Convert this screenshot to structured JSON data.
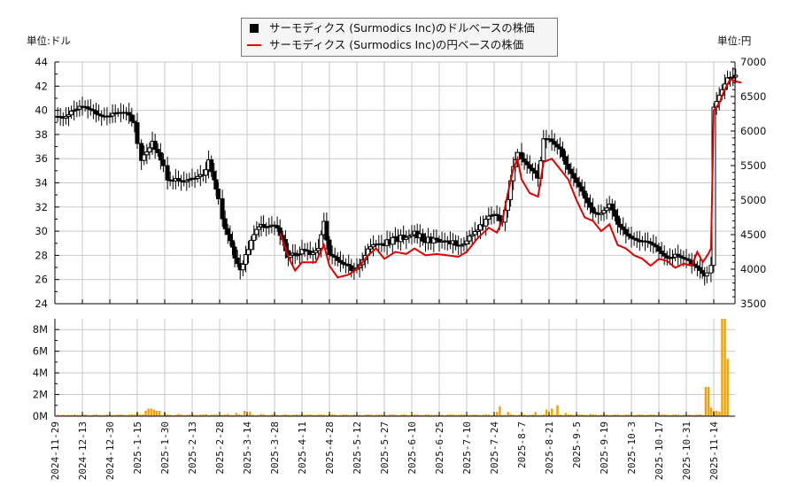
{
  "legend": {
    "usd_label": "サーモディクス (Surmodics Inc)のドルベースの株価",
    "jpy_label": "サーモディクス (Surmodics Inc)の円ベースの株価"
  },
  "units": {
    "left": "単位:ドル",
    "right": "単位:円"
  },
  "colors": {
    "candle": "#000000",
    "jpy_line": "#e00000",
    "volume": "#f5a000",
    "grid": "#c8c8c8"
  },
  "chart_data": [
    {
      "type": "candlestick",
      "title": "",
      "legend": [
        "サーモディクス (Surmodics Inc)のドルベースの株価",
        "サーモディクス (Surmodics Inc)の円ベースの株価"
      ],
      "ylabel_left": "単位:ドル",
      "ylabel_right": "単位:円",
      "ylim_left": [
        24,
        44
      ],
      "yticks_left": [
        24,
        26,
        28,
        30,
        32,
        34,
        36,
        38,
        40,
        42,
        44
      ],
      "ylim_right": [
        3500,
        7000
      ],
      "yticks_right": [
        3500,
        4000,
        4500,
        5000,
        5500,
        6000,
        6500,
        7000
      ],
      "grid": true,
      "x": [
        "2024-11-29",
        "2024-12-13",
        "2024-12-30",
        "2025-1-15",
        "2025-1-30",
        "2025-2-13",
        "2025-2-28",
        "2025-3-14",
        "2025-3-28",
        "2025-4-11",
        "2025-4-28",
        "2025-5-12",
        "2025-5-27",
        "2025-6-10",
        "2025-6-25",
        "2025-7-10",
        "2025-7-24",
        "2025-8-7",
        "2025-8-21",
        "2025-9-5",
        "2025-9-19",
        "2025-10-3",
        "2025-10-17",
        "2025-10-31",
        "2025-11-14"
      ],
      "series": [
        {
          "name": "USD close (approx, sampled)",
          "values": [
            [
              0,
              39.5
            ],
            [
              0.3,
              39.6
            ],
            [
              0.6,
              40.0
            ],
            [
              0.9,
              40.1
            ],
            [
              1.2,
              40.0
            ],
            [
              1.5,
              39.9
            ],
            [
              1.8,
              39.7
            ],
            [
              2.1,
              39.6
            ],
            [
              2.4,
              39.6
            ],
            [
              2.7,
              39.7
            ],
            [
              2.9,
              38.8
            ],
            [
              3.0,
              37.5
            ],
            [
              3.15,
              36.0
            ],
            [
              3.35,
              36.8
            ],
            [
              3.55,
              37.5
            ],
            [
              3.75,
              36.3
            ],
            [
              3.95,
              35.2
            ],
            [
              4.1,
              34.0
            ],
            [
              4.3,
              34.0
            ],
            [
              4.5,
              34.3
            ],
            [
              4.8,
              34.0
            ],
            [
              5.1,
              34.2
            ],
            [
              5.4,
              34.8
            ],
            [
              5.6,
              35.8
            ],
            [
              5.8,
              34.0
            ],
            [
              5.95,
              32.5
            ],
            [
              6.1,
              31.0
            ],
            [
              6.3,
              29.5
            ],
            [
              6.55,
              28.0
            ],
            [
              6.75,
              27.0
            ],
            [
              6.95,
              28.0
            ],
            [
              7.15,
              29.0
            ],
            [
              7.35,
              30.0
            ],
            [
              7.6,
              30.5
            ],
            [
              7.9,
              30.7
            ],
            [
              8.1,
              30.5
            ],
            [
              8.3,
              29.3
            ],
            [
              8.5,
              27.6
            ],
            [
              8.75,
              28.2
            ],
            [
              9.0,
              28.3
            ],
            [
              9.3,
              28.2
            ],
            [
              9.6,
              28.8
            ],
            [
              9.8,
              31.0
            ],
            [
              10.0,
              28.0
            ],
            [
              10.3,
              27.8
            ],
            [
              10.6,
              27.4
            ],
            [
              10.8,
              27.0
            ],
            [
              11.1,
              27.3
            ],
            [
              11.4,
              28.3
            ],
            [
              11.7,
              28.8
            ],
            [
              12.0,
              29.0
            ],
            [
              12.4,
              29.3
            ],
            [
              12.8,
              29.6
            ],
            [
              13.1,
              29.8
            ],
            [
              13.5,
              29.3
            ],
            [
              13.9,
              29.2
            ],
            [
              14.3,
              29.1
            ],
            [
              14.7,
              29.0
            ],
            [
              15.0,
              29.3
            ],
            [
              15.4,
              30.2
            ],
            [
              15.8,
              31.0
            ],
            [
              16.1,
              31.2
            ],
            [
              16.3,
              30.5
            ],
            [
              16.5,
              32.5
            ],
            [
              16.7,
              35.5
            ],
            [
              16.85,
              36.5
            ],
            [
              17.0,
              35.8
            ],
            [
              17.3,
              35.0
            ],
            [
              17.6,
              34.5
            ],
            [
              17.8,
              37.5
            ],
            [
              18.1,
              37.6
            ],
            [
              18.4,
              37.0
            ],
            [
              18.7,
              35.0
            ],
            [
              19.0,
              33.8
            ],
            [
              19.3,
              32.8
            ],
            [
              19.6,
              31.8
            ],
            [
              19.9,
              31.5
            ],
            [
              20.2,
              32.0
            ],
            [
              20.5,
              30.5
            ],
            [
              20.8,
              30.0
            ],
            [
              21.1,
              29.5
            ],
            [
              21.4,
              29.0
            ],
            [
              21.7,
              28.8
            ],
            [
              22.0,
              28.5
            ],
            [
              22.3,
              28.0
            ],
            [
              22.6,
              28.0
            ],
            [
              22.9,
              27.5
            ],
            [
              23.2,
              27.3
            ],
            [
              23.5,
              27.0
            ],
            [
              23.75,
              26.3
            ],
            [
              23.9,
              27.0
            ],
            [
              24.0,
              40.5
            ],
            [
              24.2,
              41.4
            ],
            [
              24.5,
              42.9
            ],
            [
              24.8,
              42.9
            ]
          ]
        },
        {
          "name": "JPY line (approx, sampled)",
          "values": [
            [
              8.2,
              4520
            ],
            [
              8.5,
              4180
            ],
            [
              8.75,
              3980
            ],
            [
              9.0,
              4100
            ],
            [
              9.5,
              4100
            ],
            [
              9.8,
              4350
            ],
            [
              10.0,
              4050
            ],
            [
              10.3,
              3880
            ],
            [
              10.7,
              3920
            ],
            [
              11.0,
              4000
            ],
            [
              11.4,
              4200
            ],
            [
              11.7,
              4300
            ],
            [
              12.0,
              4150
            ],
            [
              12.4,
              4250
            ],
            [
              12.8,
              4220
            ],
            [
              13.1,
              4300
            ],
            [
              13.5,
              4200
            ],
            [
              13.9,
              4220
            ],
            [
              14.3,
              4200
            ],
            [
              14.7,
              4180
            ],
            [
              15.0,
              4250
            ],
            [
              15.4,
              4450
            ],
            [
              15.8,
              4600
            ],
            [
              16.1,
              4530
            ],
            [
              16.3,
              4700
            ],
            [
              16.5,
              5100
            ],
            [
              16.7,
              5450
            ],
            [
              16.85,
              5600
            ],
            [
              17.0,
              5300
            ],
            [
              17.3,
              5100
            ],
            [
              17.6,
              5050
            ],
            [
              17.8,
              5550
            ],
            [
              18.1,
              5600
            ],
            [
              18.4,
              5450
            ],
            [
              18.7,
              5300
            ],
            [
              19.0,
              5000
            ],
            [
              19.3,
              4750
            ],
            [
              19.6,
              4700
            ],
            [
              19.9,
              4550
            ],
            [
              20.2,
              4650
            ],
            [
              20.5,
              4350
            ],
            [
              20.8,
              4300
            ],
            [
              21.1,
              4200
            ],
            [
              21.4,
              4150
            ],
            [
              21.7,
              4050
            ],
            [
              22.0,
              4150
            ],
            [
              22.3,
              4120
            ],
            [
              22.6,
              4020
            ],
            [
              22.9,
              4080
            ],
            [
              23.2,
              4050
            ],
            [
              23.4,
              4250
            ],
            [
              23.6,
              4100
            ],
            [
              23.8,
              4220
            ],
            [
              23.9,
              4300
            ],
            [
              24.0,
              6300
            ],
            [
              24.2,
              6400
            ],
            [
              24.4,
              6600
            ],
            [
              24.6,
              6750
            ],
            [
              24.8,
              6720
            ],
            [
              25.0,
              6700
            ]
          ]
        },
        {
          "name": "Volume (approx, M)",
          "values": [
            [
              0.2,
              0.1
            ],
            [
              0.6,
              0.1
            ],
            [
              1.2,
              0.1
            ],
            [
              1.6,
              0.1
            ],
            [
              2.1,
              0.1
            ],
            [
              2.6,
              0.1
            ],
            [
              3.0,
              0.3
            ],
            [
              3.3,
              0.5
            ],
            [
              3.45,
              0.7
            ],
            [
              3.6,
              0.6
            ],
            [
              3.75,
              0.5
            ],
            [
              4.0,
              0.3
            ],
            [
              4.5,
              0.2
            ],
            [
              5.0,
              0.2
            ],
            [
              5.5,
              0.2
            ],
            [
              6.3,
              0.2
            ],
            [
              6.6,
              0.3
            ],
            [
              6.9,
              0.5
            ],
            [
              7.1,
              0.4
            ],
            [
              7.5,
              0.2
            ],
            [
              8.0,
              0.2
            ],
            [
              9.0,
              0.2
            ],
            [
              10.0,
              0.2
            ],
            [
              11.0,
              0.1
            ],
            [
              12.0,
              0.1
            ],
            [
              13.0,
              0.1
            ],
            [
              14.0,
              0.1
            ],
            [
              15.0,
              0.1
            ],
            [
              16.1,
              0.4
            ],
            [
              16.2,
              0.9
            ],
            [
              16.5,
              0.4
            ],
            [
              17.0,
              0.3
            ],
            [
              17.5,
              0.4
            ],
            [
              17.9,
              0.6
            ],
            [
              18.1,
              0.7
            ],
            [
              18.3,
              1.0
            ],
            [
              18.6,
              0.3
            ],
            [
              19.0,
              0.2
            ],
            [
              19.5,
              0.2
            ],
            [
              20.0,
              0.2
            ],
            [
              21.0,
              0.1
            ],
            [
              22.0,
              0.1
            ],
            [
              23.0,
              0.1
            ],
            [
              23.6,
              0.1
            ],
            [
              23.75,
              2.7
            ],
            [
              23.9,
              0.8
            ],
            [
              24.05,
              0.5
            ],
            [
              24.2,
              0.4
            ],
            [
              24.35,
              9.0
            ],
            [
              24.5,
              5.3
            ]
          ]
        }
      ]
    },
    {
      "type": "bar",
      "title": "",
      "ylabel": "Volume",
      "ylim": [
        0,
        9000000
      ],
      "yticks": [
        "0M",
        "2M",
        "4M",
        "6M",
        "8M"
      ],
      "x": [
        "2024-11-29",
        "2024-12-13",
        "2024-12-30",
        "2025-1-15",
        "2025-1-30",
        "2025-2-13",
        "2025-2-28",
        "2025-3-14",
        "2025-3-28",
        "2025-4-11",
        "2025-4-28",
        "2025-5-12",
        "2025-5-27",
        "2025-6-10",
        "2025-6-25",
        "2025-7-10",
        "2025-7-24",
        "2025-8-7",
        "2025-8-21",
        "2025-9-5",
        "2025-9-19",
        "2025-10-3",
        "2025-10-17",
        "2025-10-31",
        "2025-11-14"
      ]
    }
  ],
  "axes": {
    "left_ticks": [
      "24",
      "26",
      "28",
      "30",
      "32",
      "34",
      "36",
      "38",
      "40",
      "42",
      "44"
    ],
    "right_ticks": [
      "3500",
      "4000",
      "4500",
      "5000",
      "5500",
      "6000",
      "6500",
      "7000"
    ],
    "volume_ticks": [
      "0M",
      "2M",
      "4M",
      "6M",
      "8M"
    ],
    "x_ticks": [
      "2024-11-29",
      "2024-12-13",
      "2024-12-30",
      "2025-1-15",
      "2025-1-30",
      "2025-2-13",
      "2025-2-28",
      "2025-3-14",
      "2025-3-28",
      "2025-4-11",
      "2025-4-28",
      "2025-5-12",
      "2025-5-27",
      "2025-6-10",
      "2025-6-25",
      "2025-7-10",
      "2025-7-24",
      "2025-8-7",
      "2025-8-21",
      "2025-9-5",
      "2025-9-19",
      "2025-10-3",
      "2025-10-17",
      "2025-10-31",
      "2025-11-14"
    ]
  }
}
